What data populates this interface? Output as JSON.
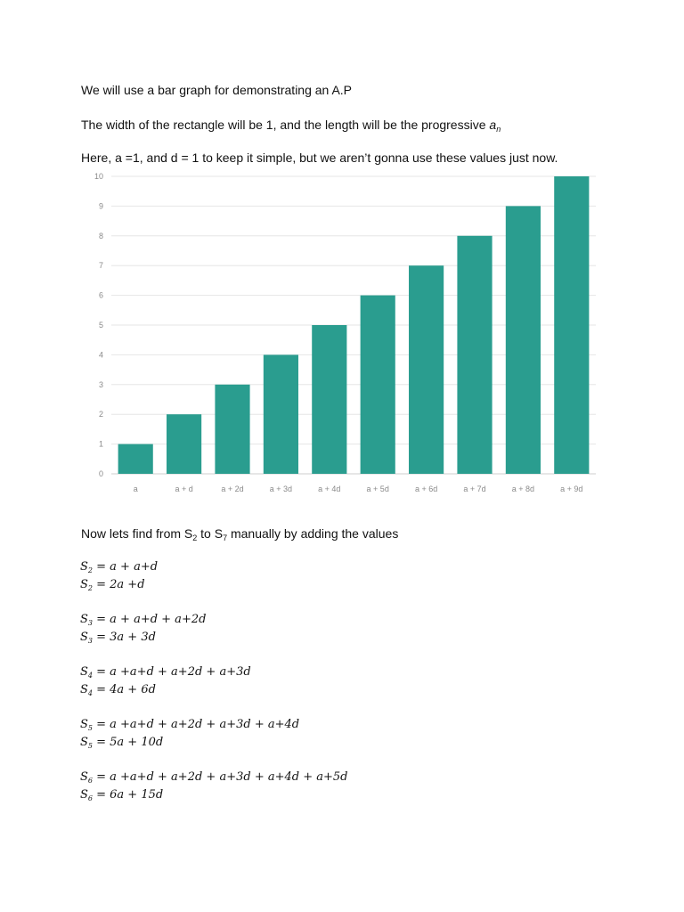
{
  "intro": {
    "line1": "We will use a bar graph for demonstrating an A.P",
    "line2_pre": "The width of the rectangle will be 1, and the length will be the progressive ",
    "line2_var": "a",
    "line2_sub": "n",
    "line3": "Here, a =1, and d = 1 to keep it simple, but we aren’t gonna use these values just now."
  },
  "chart_data": {
    "type": "bar",
    "categories": [
      "a",
      "a + d",
      "a + 2d",
      "a + 3d",
      "a + 4d",
      "a + 5d",
      "a + 6d",
      "a + 7d",
      "a + 8d",
      "a + 9d"
    ],
    "values": [
      1,
      2,
      3,
      4,
      5,
      6,
      7,
      8,
      9,
      10
    ],
    "yticks": [
      "0",
      "1",
      "2",
      "3",
      "4",
      "5",
      "6",
      "7",
      "8",
      "9",
      "10"
    ],
    "ylim": [
      0,
      10
    ],
    "grid": true,
    "bar_color": "#2a9d8f",
    "title": "",
    "xlabel": "",
    "ylabel": ""
  },
  "section": {
    "pre": "Now lets find from S",
    "sub1": "2",
    "mid": " to S",
    "sub2": "7",
    "post": " manually  by adding the values"
  },
  "equations": [
    {
      "lhs": "S",
      "sub": "2",
      "rhs": " = a + a+d"
    },
    {
      "lhs": "S",
      "sub": "2",
      "rhs": " = 2a +d"
    },
    {
      "lhs": "S",
      "sub": "3",
      "rhs": " = a + a+d + a+2d"
    },
    {
      "lhs": "S",
      "sub": "3",
      "rhs": " = 3a + 3d"
    },
    {
      "lhs": "S",
      "sub": "4",
      "rhs": " = a +a+d + a+2d + a+3d"
    },
    {
      "lhs": "S",
      "sub": "4",
      "rhs": " = 4a + 6d"
    },
    {
      "lhs": "S",
      "sub": "5",
      "rhs": " = a +a+d + a+2d + a+3d + a+4d"
    },
    {
      "lhs": "S",
      "sub": "5",
      "rhs": " = 5a + 10d"
    },
    {
      "lhs": "S",
      "sub": "6",
      "rhs": " = a +a+d + a+2d + a+3d + a+4d + a+5d"
    },
    {
      "lhs": "S",
      "sub": "6",
      "rhs": " = 6a + 15d"
    }
  ]
}
